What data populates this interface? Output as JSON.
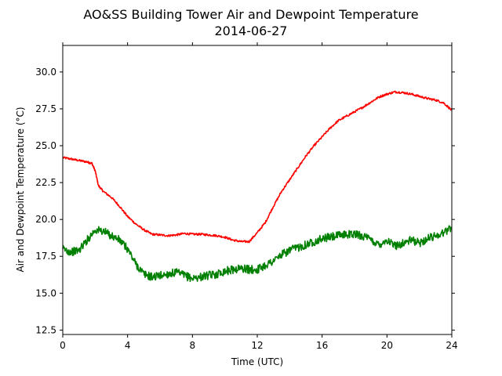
{
  "chart_data": {
    "type": "line",
    "title": "AO&SS Building Tower Air and Dewpoint Temperature",
    "subtitle": "2014-06-27",
    "xlabel": "Time (UTC)",
    "ylabel": "Air and Dewpoint Temperature (°C)",
    "xlim": [
      0,
      24
    ],
    "ylim": [
      12.2,
      31.8
    ],
    "xticks": [
      0,
      4,
      8,
      12,
      16,
      20,
      24
    ],
    "xtick_labels": [
      "0",
      "4",
      "8",
      "12",
      "16",
      "20",
      "24"
    ],
    "yticks": [
      12.5,
      15.0,
      17.5,
      20.0,
      22.5,
      25.0,
      27.5,
      30.0
    ],
    "ytick_labels": [
      "12.5",
      "15.0",
      "17.5",
      "20.0",
      "22.5",
      "25.0",
      "27.5",
      "30.0"
    ],
    "grid": false,
    "series": [
      {
        "color": "#ff0000",
        "x": [
          0.0,
          0.5,
          1.0,
          1.5,
          1.8,
          2.0,
          2.2,
          2.5,
          3.0,
          3.5,
          4.0,
          4.5,
          5.0,
          5.5,
          6.0,
          6.5,
          7.0,
          7.5,
          8.0,
          8.5,
          9.0,
          9.5,
          10.0,
          10.5,
          11.0,
          11.5,
          12.0,
          12.5,
          13.0,
          13.5,
          14.0,
          14.5,
          15.0,
          15.5,
          16.0,
          16.5,
          17.0,
          17.5,
          18.0,
          18.5,
          19.0,
          19.5,
          20.0,
          20.5,
          21.0,
          21.5,
          22.0,
          22.5,
          23.0,
          23.5,
          24.0
        ],
        "values": [
          24.2,
          24.1,
          24.0,
          23.9,
          23.8,
          23.3,
          22.3,
          21.9,
          21.5,
          20.9,
          20.2,
          19.7,
          19.3,
          19.0,
          18.95,
          18.9,
          18.95,
          19.05,
          19.0,
          19.0,
          18.95,
          18.9,
          18.8,
          18.6,
          18.5,
          18.5,
          19.1,
          19.8,
          20.9,
          21.9,
          22.7,
          23.5,
          24.3,
          25.0,
          25.6,
          26.2,
          26.7,
          27.0,
          27.3,
          27.6,
          27.95,
          28.3,
          28.5,
          28.65,
          28.6,
          28.5,
          28.35,
          28.2,
          28.1,
          27.9,
          27.4
        ]
      },
      {
        "color": "#008000",
        "x": [
          0.0,
          0.5,
          1.0,
          1.5,
          2.0,
          2.5,
          3.0,
          3.5,
          4.0,
          4.5,
          5.0,
          5.5,
          6.0,
          6.5,
          7.0,
          7.5,
          8.0,
          8.5,
          9.0,
          9.5,
          10.0,
          10.5,
          11.0,
          11.5,
          12.0,
          12.5,
          13.0,
          13.5,
          14.0,
          14.5,
          15.0,
          15.5,
          16.0,
          16.5,
          17.0,
          17.5,
          18.0,
          18.5,
          19.0,
          19.5,
          20.0,
          20.5,
          21.0,
          21.5,
          22.0,
          22.5,
          23.0,
          23.5,
          24.0
        ],
        "values": [
          18.0,
          17.8,
          17.9,
          18.6,
          19.3,
          19.2,
          18.9,
          18.6,
          18.0,
          17.0,
          16.3,
          16.1,
          16.2,
          16.3,
          16.4,
          16.2,
          16.0,
          16.1,
          16.2,
          16.3,
          16.5,
          16.6,
          16.7,
          16.6,
          16.6,
          16.9,
          17.2,
          17.6,
          17.9,
          18.1,
          18.3,
          18.5,
          18.7,
          18.8,
          18.9,
          19.0,
          19.0,
          18.9,
          18.6,
          18.3,
          18.6,
          18.2,
          18.4,
          18.6,
          18.4,
          18.7,
          18.9,
          19.1,
          19.5
        ]
      }
    ]
  }
}
